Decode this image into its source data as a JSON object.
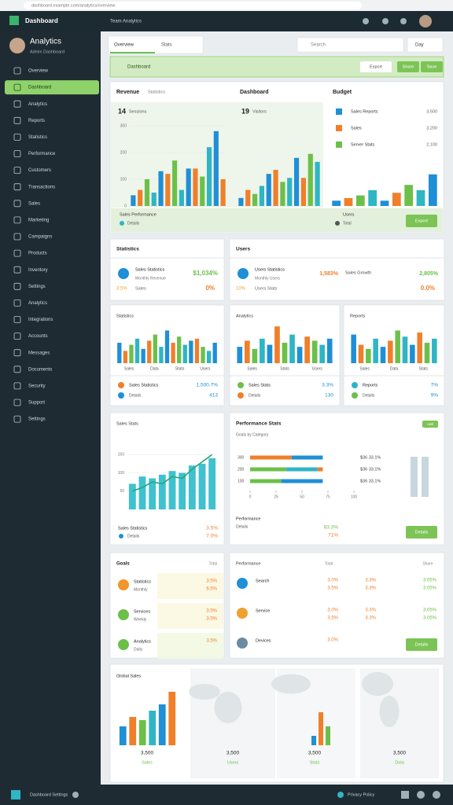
{
  "browser": {
    "url": "dashboard.example.com/analytics/overview"
  },
  "app": {
    "title": "Dashboard",
    "nav_link": "Team Analytics"
  },
  "profile": {
    "name": "Analytics",
    "role": "Admin Dashboard"
  },
  "sidebar": {
    "active": 1,
    "items": [
      "Overview",
      "Dashboard",
      "Analytics",
      "Reports",
      "Statistics",
      "Performance",
      "Customers",
      "Transactions",
      "Sales",
      "Marketing",
      "Campaigns",
      "Products",
      "Inventory",
      "Settings",
      "Analytics",
      "Integrations",
      "Accounts",
      "Messages",
      "Documents",
      "Security",
      "Support",
      "Settings"
    ]
  },
  "toolbar": {
    "tabs": [
      "Overview",
      "Stats"
    ],
    "search": "Search",
    "filter": "Day"
  },
  "banner": {
    "title": "Dashboard",
    "buttons": [
      "Export",
      "Share",
      "Save"
    ]
  },
  "palette": [
    "#1f8fd6",
    "#f07f2a",
    "#6cc04a",
    "#2fb5c4"
  ],
  "row1": {
    "charts": [
      {
        "title": "Revenue",
        "subtitle": "Statistics",
        "big": "14",
        "label": "Sessions",
        "ylim": [
          0,
          300
        ],
        "yticks": [
          0,
          100,
          200,
          300
        ],
        "values": [
          40,
          60,
          100,
          50,
          130,
          120,
          170,
          60,
          140,
          140,
          110,
          220,
          280,
          100
        ]
      },
      {
        "title": "Dashboard",
        "big": "19",
        "label": "Visitors",
        "ylim": [
          0,
          100
        ],
        "values": [
          10,
          20,
          15,
          25,
          40,
          45,
          30,
          35,
          60,
          35,
          65,
          55
        ]
      },
      {
        "title": "Budget",
        "legend": [
          "Sales Reports",
          "Sales",
          "Server Stats"
        ],
        "legend_values": [
          "3,500",
          "3,200",
          "2,100"
        ],
        "ylim": [
          0,
          100
        ],
        "values": [
          10,
          15,
          20,
          30,
          10,
          25,
          40,
          30,
          60
        ]
      }
    ],
    "footer": {
      "left": "Sales Performance",
      "sub": "Details",
      "mid": "Users",
      "mid_sub": "Total",
      "button": "Export"
    }
  },
  "row2": [
    {
      "title": "Statistics",
      "item": "Sales Statistics",
      "item_sub": "Monthly Revenue",
      "value": "$1,034%",
      "note_left": "3.5%",
      "note_mid": "Sales",
      "note_right": "0%"
    },
    {
      "title": "Users",
      "item": "Users Statistics",
      "item_sub": "Monthly Users",
      "value": "1,583%",
      "value2": "Sales Growth",
      "value3": "2,805%",
      "note_left": "10%",
      "note_mid": "Users Stats",
      "note_right": "0.0%"
    }
  ],
  "row3": [
    {
      "title": "Statistics",
      "categories": [
        "Sales",
        "Data",
        "Stats",
        "Users"
      ],
      "ylim": [
        0,
        100
      ],
      "values": [
        50,
        30,
        45,
        60,
        35,
        55,
        70,
        40,
        80,
        50,
        65,
        45,
        55,
        60,
        40,
        30,
        50
      ],
      "footer": "Sales Statistics",
      "sub": "Details",
      "value": "1,500.7%",
      "value2": "413"
    },
    {
      "title": "Analytics",
      "categories": [
        "Sales",
        "Stats",
        "Users"
      ],
      "ylim": [
        0,
        100
      ],
      "values": [
        40,
        55,
        35,
        60,
        45,
        90,
        50,
        70,
        40,
        65,
        55,
        45,
        60
      ],
      "footer": "Sales Stats",
      "sub": "Details",
      "value": "3.3%",
      "value2": "130"
    },
    {
      "title": "Reports",
      "categories": [
        "Sales",
        "Data",
        "Stats"
      ],
      "ylim": [
        0,
        100
      ],
      "values": [
        70,
        45,
        35,
        60,
        40,
        55,
        80,
        65,
        45,
        75,
        50,
        60
      ],
      "footer": "Reports",
      "sub": "Details",
      "value": "7%",
      "value2": "9%"
    }
  ],
  "row4": {
    "trend": {
      "title": "Sales Stats",
      "ylim": [
        0,
        200
      ],
      "yticks": [
        50,
        100,
        150
      ],
      "values": [
        70,
        90,
        85,
        95,
        105,
        100,
        120,
        125,
        140
      ],
      "line": [
        50,
        60,
        75,
        70,
        90,
        85,
        110,
        130,
        150
      ],
      "footer": "Sales Statistics",
      "sub": "Details",
      "value": "3.5%",
      "value2": "7.0%"
    },
    "perf": {
      "title": "Performance Stats",
      "subtitle": "Goals by Category",
      "badge": "Add",
      "xlim": [
        0,
        100
      ],
      "xticks": [
        0,
        25,
        50,
        75,
        100
      ],
      "rows": [
        {
          "label": "300",
          "segments": [
            40,
            30
          ],
          "value": "$36 33.1%"
        },
        {
          "label": "200",
          "segments": [
            35,
            30,
            5
          ],
          "value": "$36 33.1%"
        },
        {
          "label": "100",
          "segments": [
            30,
            40
          ],
          "value": "$36 33.1%"
        }
      ],
      "side": [
        85,
        85
      ],
      "side_ylim": [
        0,
        100
      ],
      "footer": "Performance",
      "sub": "Details",
      "value": "83.3%",
      "value2": "71%",
      "button": "Details"
    }
  },
  "row5": {
    "left": {
      "title": "Goals",
      "total": "Total",
      "items": [
        {
          "name": "Statistics",
          "sub": "Monthly",
          "value": "3.5%",
          "value2": "6.5%"
        },
        {
          "name": "Services",
          "sub": "Weekly",
          "value": "3.5%",
          "value2": "3.5%"
        },
        {
          "name": "Analytics",
          "sub": "Daily",
          "value": "3.5%"
        }
      ]
    },
    "right": {
      "title": "Performance",
      "cols": [
        "Total",
        "Share"
      ],
      "rows": [
        {
          "name": "Search",
          "a": "3.0%",
          "b": "3.3%",
          "c": "3.05%",
          "a2": "3.5%",
          "b2": "3.3%",
          "c2": "3.05%"
        },
        {
          "name": "Service",
          "a": "3.0%",
          "b": "3.3%",
          "c": "3.05%",
          "a2": "3.5%",
          "b2": "3.3%",
          "c2": "3.05%"
        },
        {
          "name": "Devices",
          "a": "3.0%"
        }
      ],
      "button": "Details"
    }
  },
  "row6": {
    "title": "Global Sales",
    "ylim": [
      0,
      100
    ],
    "values": [
      30,
      45,
      40,
      55,
      65,
      85
    ],
    "stats": [
      {
        "value": "3,500",
        "sub": "Sales"
      },
      {
        "value": "3,500",
        "sub": "Users"
      },
      {
        "value": "3,500",
        "sub": "Stats"
      },
      {
        "value": "3,500",
        "sub": "Data"
      }
    ],
    "map_values": [
      20,
      70,
      40
    ],
    "map_ylim": [
      0,
      100
    ]
  },
  "footer": {
    "left": "Dashboard Settings",
    "right": "Privacy Policy"
  }
}
